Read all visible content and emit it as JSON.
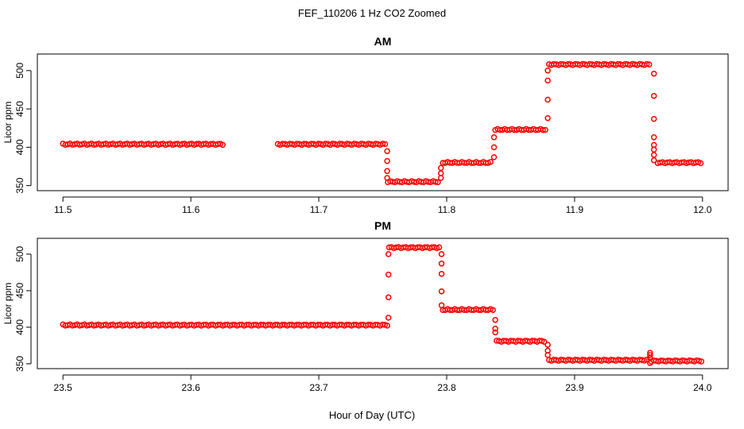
{
  "figure": {
    "title": "FEF_110206 1 Hz CO2 Zoomed",
    "xlabel": "Hour of Day (UTC)"
  },
  "colors": {
    "points": "#ff0000",
    "axis": "#000000"
  },
  "chart_data": [
    {
      "type": "scatter",
      "title": "AM",
      "xlabel": "",
      "ylabel": "Licor ppm",
      "xlim": [
        11.5,
        12.0
      ],
      "ylim": [
        350,
        515
      ],
      "xticks": [
        "11.5",
        "11.6",
        "11.7",
        "11.8",
        "11.9",
        "12.0"
      ],
      "yticks": [
        "350",
        "400",
        "450",
        "500"
      ],
      "grid": false,
      "segments": [
        {
          "x": [
            11.5,
            11.625
          ],
          "y": 404
        },
        {
          "x": [
            11.668,
            11.753
          ],
          "y": 404
        },
        {
          "x": [
            11.754,
            11.795
          ],
          "y": 355
        },
        {
          "x": [
            11.797,
            11.836
          ],
          "y": 380
        },
        {
          "x": [
            11.838,
            11.878
          ],
          "y": 423
        },
        {
          "x": [
            11.88,
            11.96
          ],
          "y": 508
        },
        {
          "x": [
            11.965,
            12.0
          ],
          "y": 380
        }
      ],
      "transitions": [
        {
          "x": 11.7535,
          "y": [
            395,
            382,
            369,
            360
          ]
        },
        {
          "x": 11.7955,
          "y": [
            360,
            366,
            373
          ]
        },
        {
          "x": 11.837,
          "y": [
            387,
            400,
            413
          ]
        },
        {
          "x": 11.879,
          "y": [
            438,
            462,
            487,
            500
          ]
        },
        {
          "x": 11.962,
          "y": [
            496,
            467,
            437,
            413,
            403,
            397,
            390,
            383
          ]
        }
      ]
    },
    {
      "type": "scatter",
      "title": "PM",
      "xlabel": "",
      "ylabel": "Licor ppm",
      "xlim": [
        23.5,
        24.0
      ],
      "ylim": [
        350,
        515
      ],
      "xticks": [
        "23.5",
        "23.6",
        "23.7",
        "23.8",
        "23.9",
        "24.0"
      ],
      "yticks": [
        "350",
        "400",
        "450",
        "500"
      ],
      "grid": false,
      "segments": [
        {
          "x": [
            23.5,
            23.754
          ],
          "y": 403
        },
        {
          "x": [
            23.755,
            23.795
          ],
          "y": 509
        },
        {
          "x": [
            23.797,
            23.837
          ],
          "y": 424
        },
        {
          "x": [
            23.839,
            23.878
          ],
          "y": 381
        },
        {
          "x": [
            23.88,
            23.958
          ],
          "y": 355
        },
        {
          "x": [
            23.96,
            24.0
          ],
          "y": 354
        }
      ],
      "transitions": [
        {
          "x": 23.7545,
          "y": [
            413,
            441,
            472,
            500
          ]
        },
        {
          "x": 23.796,
          "y": [
            500,
            487,
            473,
            449,
            430
          ]
        },
        {
          "x": 23.838,
          "y": [
            410,
            398,
            393
          ]
        },
        {
          "x": 23.879,
          "y": [
            376,
            368,
            362
          ]
        },
        {
          "x": 23.959,
          "y": [
            365,
            362,
            358,
            351
          ]
        }
      ]
    }
  ]
}
